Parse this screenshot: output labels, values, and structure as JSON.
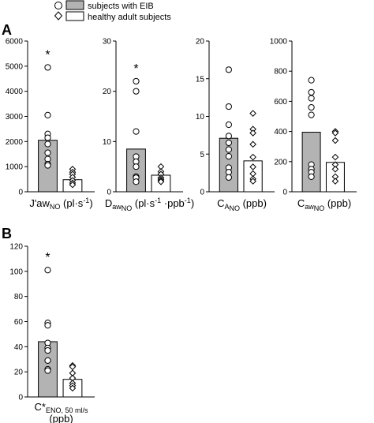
{
  "panel_letters": {
    "a": "A",
    "b": "B"
  },
  "legend": {
    "eib": "subjects with EIB",
    "healthy": "healthy adult subjects",
    "eib_color": "#b3b3b3",
    "healthy_color": "#ffffff"
  },
  "chart_data": [
    {
      "type": "bar",
      "panel": "A",
      "xlabel": {
        "main": "J'aw",
        "sub": "NO",
        "unit": " (pl·s",
        "sup": "-1",
        "end": ")"
      },
      "ylim": [
        0,
        6000
      ],
      "yticks": [
        "0",
        "1000",
        "2000",
        "3000",
        "4000",
        "5000",
        "6000"
      ],
      "significance": "*",
      "series": [
        {
          "name": "subjects with EIB",
          "mean": 2050,
          "points": [
            4950,
            3050,
            2300,
            2150,
            1900,
            1550,
            1300,
            1100,
            1050
          ]
        },
        {
          "name": "healthy adult subjects",
          "mean": 480,
          "points": [
            900,
            780,
            700,
            580,
            450,
            350,
            280
          ]
        }
      ]
    },
    {
      "type": "bar",
      "panel": "A",
      "xlabel": {
        "main": "D",
        "sub": "aw",
        "sub2": "NO",
        "unit": " (pl·s",
        "sup": "-1",
        "mid": " ·ppb",
        "sup2": "-1",
        "end": ")"
      },
      "ylim": [
        0,
        30
      ],
      "yticks": [
        "0",
        "10",
        "20",
        "30"
      ],
      "significance": "*",
      "series": [
        {
          "name": "subjects with EIB",
          "mean": 8.5,
          "points": [
            22,
            20,
            12,
            7,
            6,
            5,
            3,
            2.8,
            2
          ]
        },
        {
          "name": "healthy adult subjects",
          "mean": 3.3,
          "points": [
            5,
            4,
            3.5,
            2.8,
            2.5,
            2.2,
            2
          ]
        }
      ]
    },
    {
      "type": "bar",
      "panel": "A",
      "xlabel": {
        "main": "C",
        "sub": "A",
        "sub2": "NO",
        "unit": " (ppb)"
      },
      "ylim": [
        0,
        20
      ],
      "yticks": [
        "0",
        "5",
        "10",
        "15",
        "20"
      ],
      "significance": "",
      "series": [
        {
          "name": "subjects with EIB",
          "mean": 7.1,
          "points": [
            16.2,
            11.3,
            8.9,
            7.4,
            6.5,
            5.6,
            4.7,
            3.2,
            2.6,
            1.9
          ]
        },
        {
          "name": "healthy adult subjects",
          "mean": 4.1,
          "points": [
            10.4,
            8.3,
            7.8,
            6.3,
            4.6,
            3.3,
            2.4,
            1.7,
            1.4
          ]
        }
      ]
    },
    {
      "type": "bar",
      "panel": "A",
      "xlabel": {
        "main": "C",
        "sub": "aw",
        "sub2": "NO",
        "unit": " (ppb)"
      },
      "ylim": [
        0,
        1000
      ],
      "yticks": [
        "0",
        "200",
        "400",
        "600",
        "800",
        "1000"
      ],
      "significance": "",
      "series": [
        {
          "name": "subjects with EIB",
          "mean": 395,
          "points": [
            740,
            660,
            620,
            560,
            510,
            180,
            150,
            130,
            100
          ]
        },
        {
          "name": "healthy adult subjects",
          "mean": 195,
          "points": [
            400,
            390,
            340,
            230,
            180,
            150,
            100,
            70
          ]
        }
      ]
    },
    {
      "type": "bar",
      "panel": "B",
      "xlabel": {
        "main": "C*",
        "sub": "ENO, 50 ml/s",
        "line2": "(ppb)"
      },
      "ylim": [
        0,
        120
      ],
      "yticks": [
        "0",
        "20",
        "40",
        "60",
        "80",
        "100",
        "120"
      ],
      "significance": "*",
      "series": [
        {
          "name": "subjects with EIB",
          "mean": 44,
          "points": [
            101,
            59,
            57,
            43,
            39,
            37,
            29,
            22,
            21
          ]
        },
        {
          "name": "healthy adult subjects",
          "mean": 14,
          "points": [
            25,
            24,
            19,
            15,
            11,
            9,
            7
          ]
        }
      ]
    }
  ]
}
